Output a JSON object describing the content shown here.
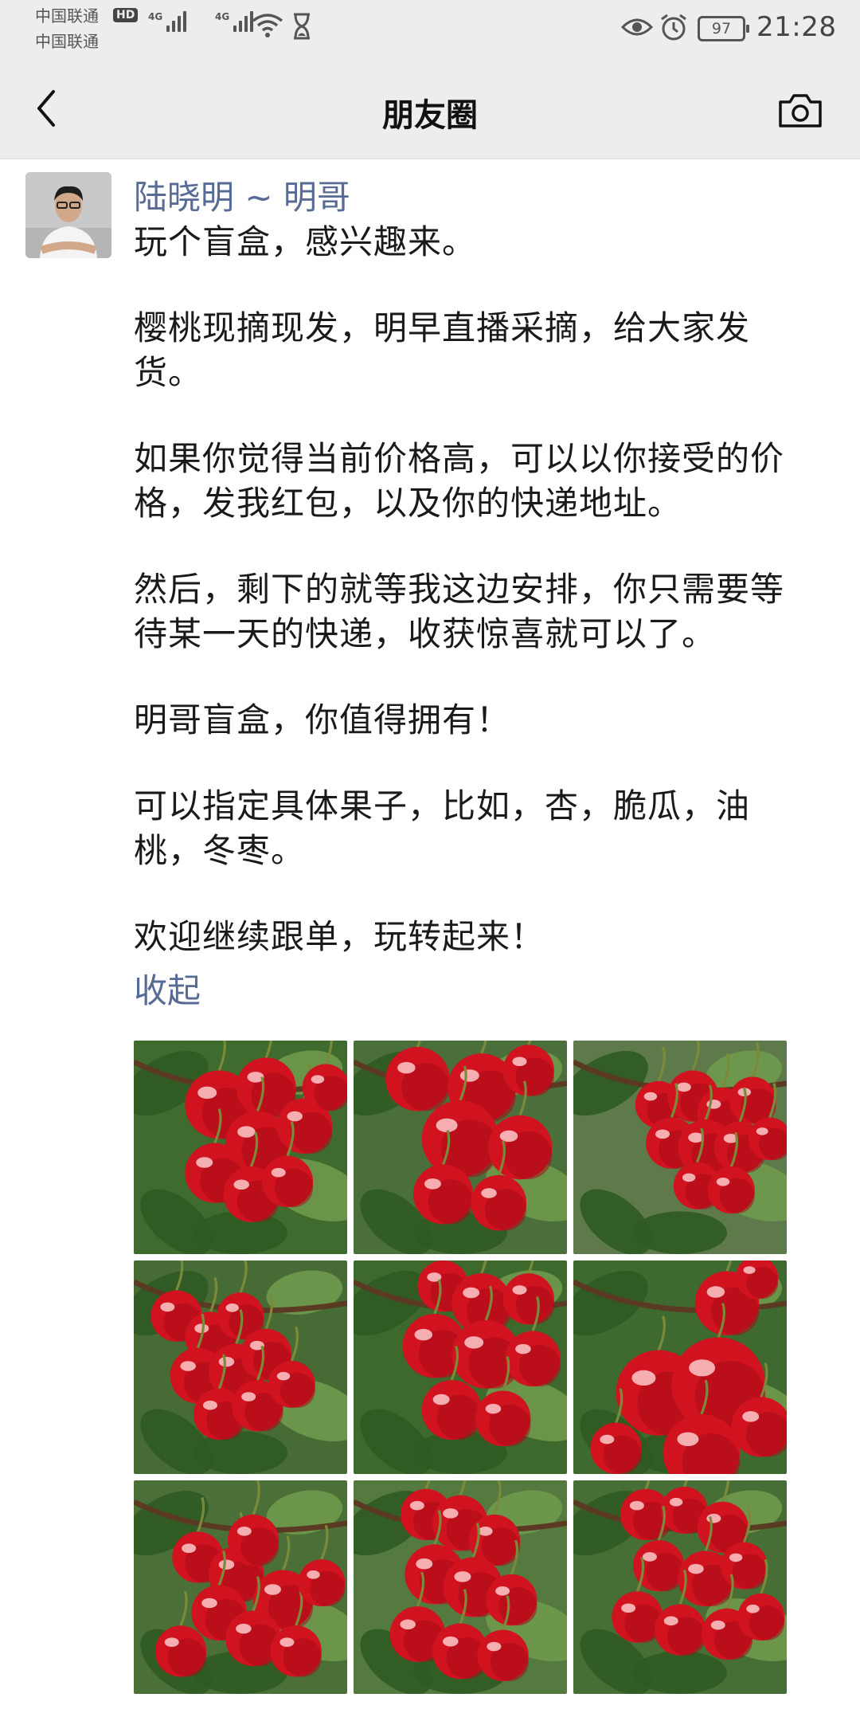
{
  "status_bar": {
    "carrier_1": "中国联通",
    "carrier_2": "中国联通",
    "hd_badge": "HD",
    "network_1": "4G",
    "network_2": "4G",
    "battery": "97",
    "time": "21:28",
    "icons": [
      "signal-icon",
      "wifi-icon",
      "hourglass-icon",
      "eye-icon",
      "alarm-icon",
      "battery-icon"
    ]
  },
  "nav": {
    "title": "朋友圈",
    "back_icon": "chevron-left-icon",
    "camera_icon": "camera-icon"
  },
  "post": {
    "author": "陆晓明 ~ 明哥",
    "paragraphs": [
      "玩个盲盒，感兴趣来。",
      "樱桃现摘现发，明早直播采摘，给大家发货。",
      "如果你觉得当前价格高，可以以你接受的价格，发我红包，以及你的快递地址。",
      "然后，剩下的就等我这边安排，你只需要等待某一天的快递，收获惊喜就可以了。",
      "明哥盲盒，你值得拥有！",
      "可以指定具体果子，比如，杏，脆瓜，油桃，冬枣。",
      "欢迎继续跟单，玩转起来！"
    ],
    "collapse_label": "收起",
    "photos": [
      "cherry-photo",
      "cherry-photo",
      "cherry-photo",
      "cherry-photo",
      "cherry-photo",
      "cherry-photo",
      "cherry-photo",
      "cherry-photo",
      "cherry-photo"
    ]
  }
}
